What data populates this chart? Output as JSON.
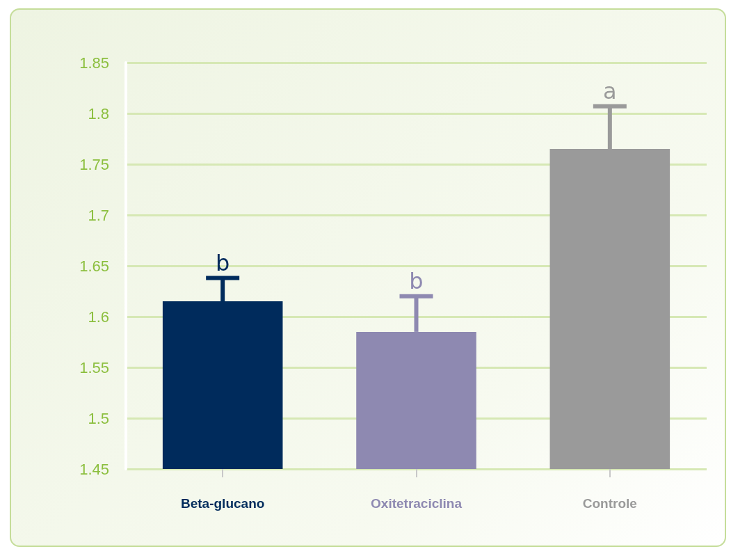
{
  "chart_data": {
    "type": "bar",
    "categories": [
      "Beta-glucano",
      "Oxitetraciclina",
      "Controle"
    ],
    "values": [
      1.615,
      1.585,
      1.765
    ],
    "colors": [
      "#002b5c",
      "#8e89b1",
      "#9a9a9a"
    ],
    "errors": [
      [
        1.615,
        1.638
      ],
      [
        1.585,
        1.62
      ],
      [
        1.765,
        1.807
      ]
    ],
    "ylim": [
      1.45,
      1.85
    ],
    "yticks": [
      1.45,
      1.5,
      1.55,
      1.6,
      1.65,
      1.7,
      1.75,
      1.8,
      1.85
    ],
    "grid": "y",
    "annotations": [
      {
        "text": "b",
        "x": "Beta-glucano",
        "y": 1.638
      },
      {
        "text": "b",
        "x": "Oxitetraciclina",
        "y": 1.62
      },
      {
        "text": "a",
        "x": "Controle",
        "y": 1.807
      }
    ]
  }
}
